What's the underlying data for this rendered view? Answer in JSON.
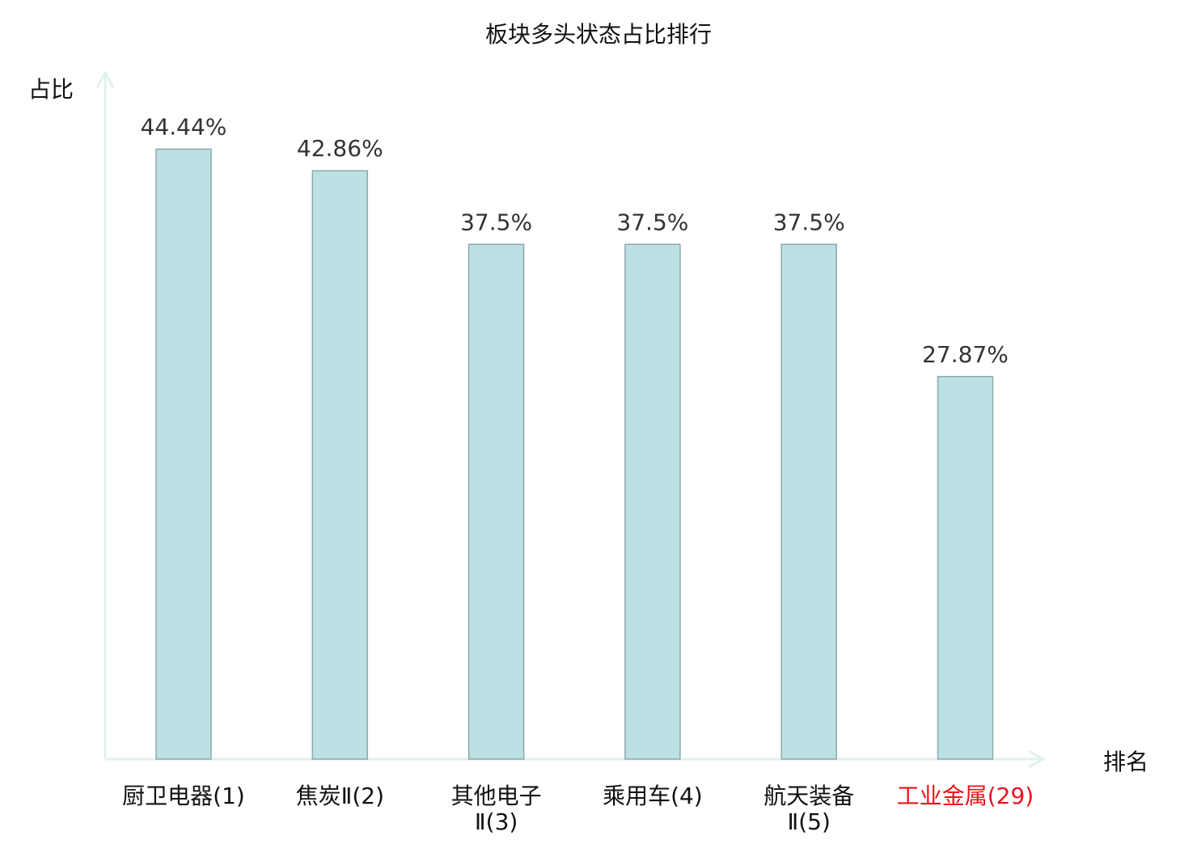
{
  "chart_data": {
    "type": "bar",
    "title": "板块多头状态占比排行",
    "ylabel": "占比",
    "xlabel": "排名",
    "ylim": [
      0,
      50
    ],
    "grid": false,
    "categories": [
      "厨卫电器(1)",
      "焦炭Ⅱ(2)",
      "其他电子Ⅱ(3)",
      "乘用车(4)",
      "航天装备Ⅱ(5)",
      "工业金属(29)"
    ],
    "values": [
      44.44,
      42.86,
      37.5,
      37.5,
      37.5,
      27.87
    ],
    "data_labels": [
      "44.44%",
      "42.86%",
      "37.5%",
      "37.5%",
      "37.5%",
      "27.87%"
    ],
    "highlighted_category": "工业金属(29)",
    "colors": {
      "bar_fill": "#bce0e3",
      "bar_stroke": "#8aaaa9",
      "axis": "#dff2ef",
      "highlight": "#e8141b",
      "text": "#333333"
    }
  }
}
